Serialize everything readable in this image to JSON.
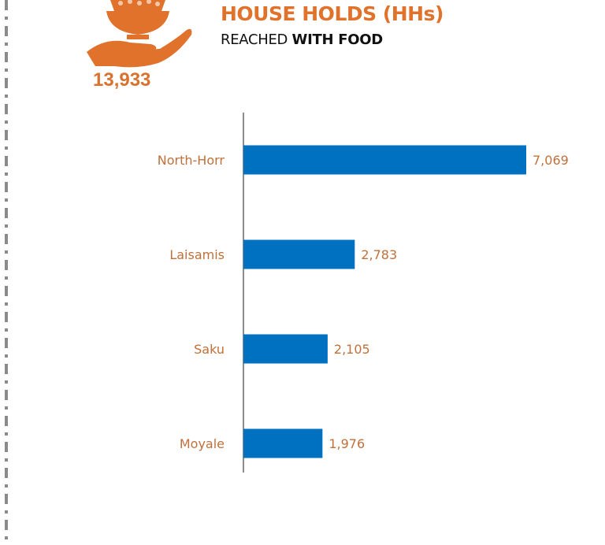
{
  "header": {
    "title": "HOUSE HOLDS (HHs)",
    "subtitle_prefix": "REACHED",
    "subtitle_emphasis": "WITH FOOD",
    "total": "13,933",
    "icon": "hand-holding-food-bowl-icon"
  },
  "colors": {
    "accent": "#e0722b",
    "bar": "#0070c0",
    "label": "#c0703a"
  },
  "chart_data": {
    "type": "bar",
    "orientation": "horizontal",
    "categories": [
      "North-Horr",
      "Laisamis",
      "Saku",
      "Moyale"
    ],
    "values": [
      7069,
      2783,
      2105,
      1976
    ],
    "value_labels": [
      "7,069",
      "2,783",
      "2,105",
      "1,976"
    ],
    "xlim": [
      0,
      7069
    ],
    "grid": false,
    "legend": "none"
  }
}
